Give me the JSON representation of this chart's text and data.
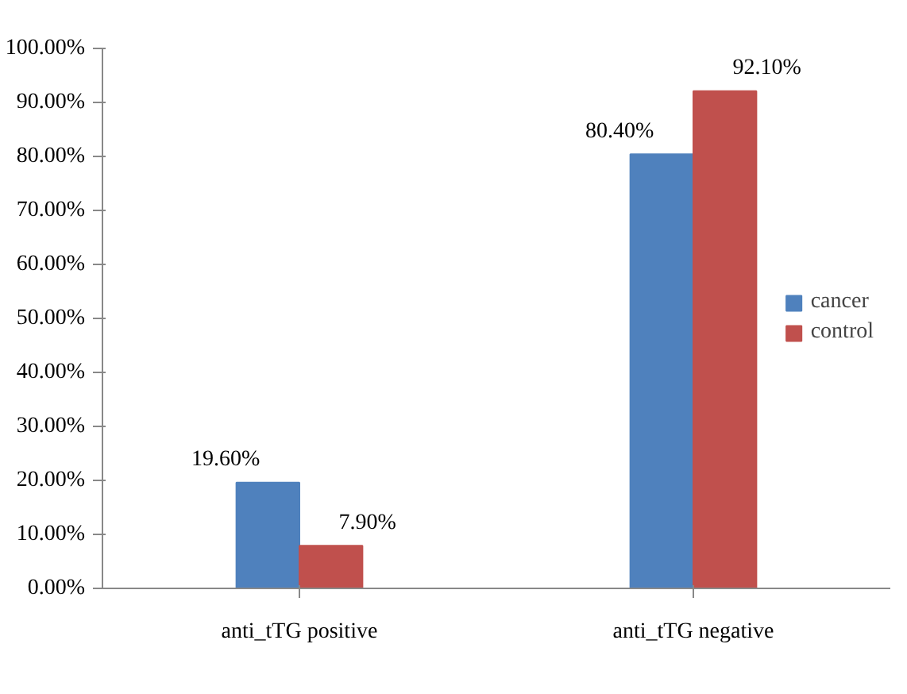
{
  "chart_data": {
    "type": "bar",
    "categories": [
      "anti_tTG positive",
      "anti_tTG negative"
    ],
    "series": [
      {
        "name": "cancer",
        "color": "#4f81bd",
        "values": [
          19.6,
          80.4
        ],
        "value_labels": [
          "19.60%",
          "80.40%"
        ]
      },
      {
        "name": "control",
        "color": "#c0504d",
        "values": [
          7.9,
          92.1
        ],
        "value_labels": [
          "7.90%",
          "92.10%"
        ]
      }
    ],
    "ylim": [
      0,
      100
    ],
    "yticks": [
      {
        "value": 0,
        "label": "0.00%"
      },
      {
        "value": 10,
        "label": "10.00%"
      },
      {
        "value": 20,
        "label": "20.00%"
      },
      {
        "value": 30,
        "label": "30.00%"
      },
      {
        "value": 40,
        "label": "40.00%"
      },
      {
        "value": 50,
        "label": "50.00%"
      },
      {
        "value": 60,
        "label": "60.00%"
      },
      {
        "value": 70,
        "label": "70.00%"
      },
      {
        "value": 80,
        "label": "80.00%"
      },
      {
        "value": 90,
        "label": "90.00%"
      },
      {
        "value": 100,
        "label": "100.00%"
      }
    ],
    "legend": "right"
  }
}
